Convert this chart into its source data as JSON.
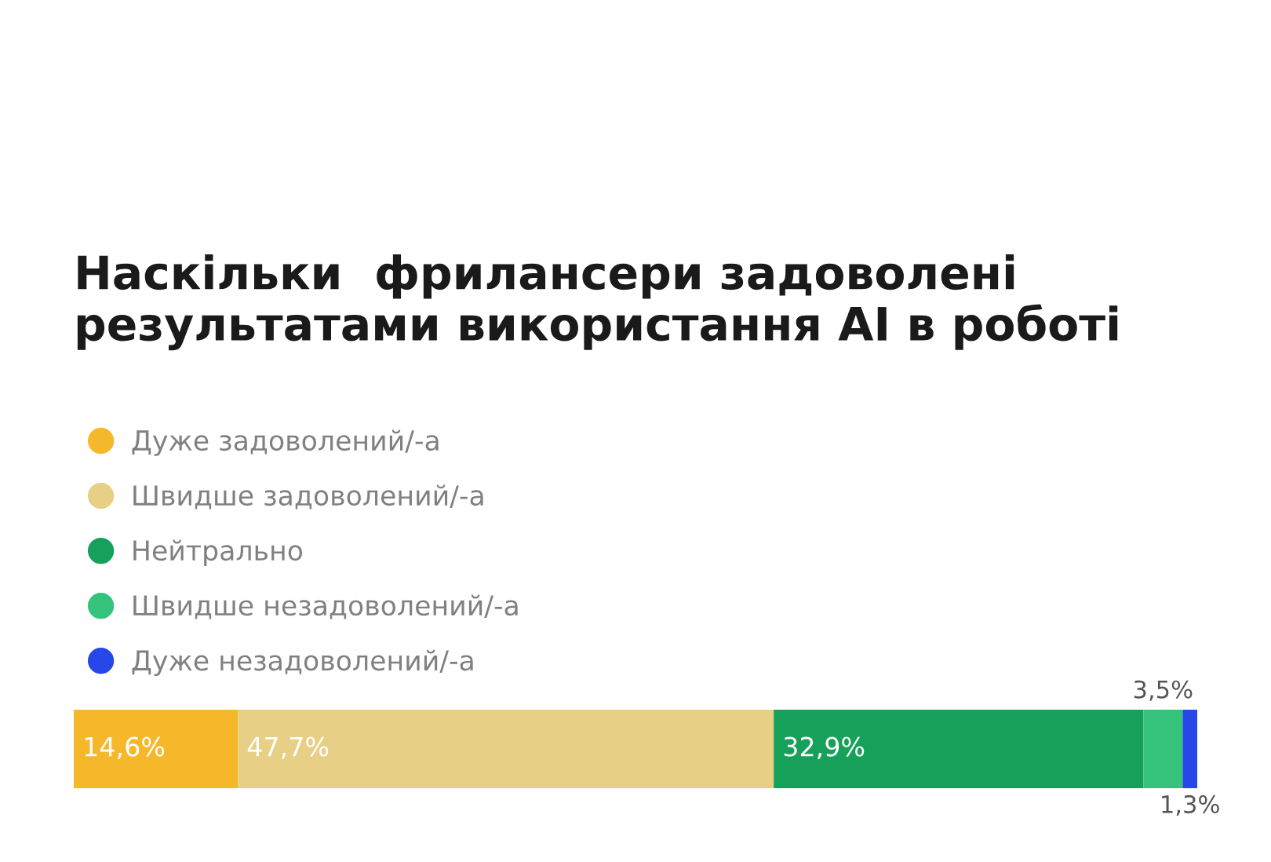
{
  "chart_data": {
    "type": "bar",
    "orientation": "horizontal",
    "stacked": true,
    "title": "Наскільки  фрилансери задоволені результатами використання AI в роботі",
    "categories": [
      null
    ],
    "xlim": [
      0,
      100
    ],
    "tick_labels": false,
    "legend": "top left",
    "marker": "circle",
    "series": [
      {
        "name": "Дуже задоволений/-а",
        "color": "#f6b82b",
        "values": [
          14.6
        ],
        "value_labels": [
          "14,6%"
        ]
      },
      {
        "name": "Швидше задоволений/-а",
        "color": "#e8cf86",
        "values": [
          47.7
        ],
        "value_labels": [
          "47,7%"
        ]
      },
      {
        "name": "Нейтрально",
        "color": "#17a05a",
        "values": [
          32.9
        ],
        "value_labels": [
          "32,9%"
        ]
      },
      {
        "name": "Швидше незадоволений/-а",
        "color": "#35c37c",
        "values": [
          3.5
        ],
        "value_labels": [
          "3,5%"
        ]
      },
      {
        "name": "Дуже незадоволений/-а",
        "color": "#2747e8",
        "values": [
          1.3
        ],
        "value_labels": [
          "1,3%"
        ]
      }
    ]
  }
}
